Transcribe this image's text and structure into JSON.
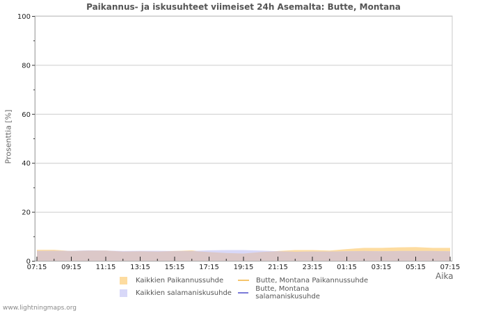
{
  "title": "Paikannus- ja iskusuhteet viimeiset 24h Asemalta: Butte, Montana",
  "y_axis_label": "Prosenttia   [%]",
  "x_axis_title": "Aika",
  "footer": "www.lightningmaps.org",
  "legend": [
    {
      "label": "Kaikkien Paikannussuhde",
      "type": "area",
      "color": "#fddca0"
    },
    {
      "label": "Kaikkien salamaniskusuhde",
      "type": "area",
      "color": "#d8d8f8"
    },
    {
      "label": "Butte, Montana Paikannussuhde",
      "type": "line",
      "color": "#f5c56b"
    },
    {
      "label": "Butte, Montana salamaniskusuhde",
      "type": "line",
      "color": "#7a7ad8"
    }
  ],
  "colors": {
    "overlap": "#dcc8c8",
    "grid": "#cccccc",
    "frame": "#c8c8c8"
  },
  "chart_data": {
    "type": "area",
    "title": "Paikannus- ja iskusuhteet viimeiset 24h Asemalta: Butte, Montana",
    "xlabel": "Aika",
    "ylabel": "Prosenttia [%]",
    "ylim": [
      0,
      100
    ],
    "yticks": [
      0,
      20,
      40,
      60,
      80,
      100
    ],
    "grid": true,
    "legend_position": "bottom",
    "x_tick_labels": [
      "07:15",
      "09:15",
      "11:15",
      "13:15",
      "15:15",
      "17:15",
      "19:15",
      "21:15",
      "23:15",
      "01:15",
      "03:15",
      "05:15",
      "07:15"
    ],
    "x": [
      "07:15",
      "08:15",
      "09:15",
      "10:15",
      "11:15",
      "12:15",
      "13:15",
      "14:15",
      "15:15",
      "16:15",
      "17:15",
      "18:15",
      "19:15",
      "20:15",
      "21:15",
      "22:15",
      "23:15",
      "00:15",
      "01:15",
      "02:15",
      "03:15",
      "04:15",
      "05:15",
      "06:15",
      "07:15"
    ],
    "series": [
      {
        "name": "Kaikkien Paikannussuhde",
        "values": [
          4.5,
          4.5,
          4.0,
          4.2,
          4.2,
          3.8,
          3.9,
          3.8,
          4.0,
          4.3,
          3.6,
          3.2,
          3.0,
          3.6,
          4.0,
          4.4,
          4.4,
          4.2,
          4.8,
          5.3,
          5.3,
          5.5,
          5.6,
          5.3,
          5.3
        ]
      },
      {
        "name": "Kaikkien salamaniskusuhde",
        "values": [
          4.0,
          4.1,
          4.1,
          4.3,
          4.2,
          4.0,
          4.1,
          4.1,
          4.0,
          4.0,
          4.3,
          4.4,
          4.4,
          4.2,
          3.9,
          3.7,
          3.8,
          3.8,
          3.9,
          4.0,
          3.9,
          4.0,
          4.0,
          4.0,
          3.9
        ]
      },
      {
        "name": "Butte, Montana Paikannussuhde",
        "values": []
      },
      {
        "name": "Butte, Montana salamaniskusuhde",
        "values": []
      }
    ]
  }
}
